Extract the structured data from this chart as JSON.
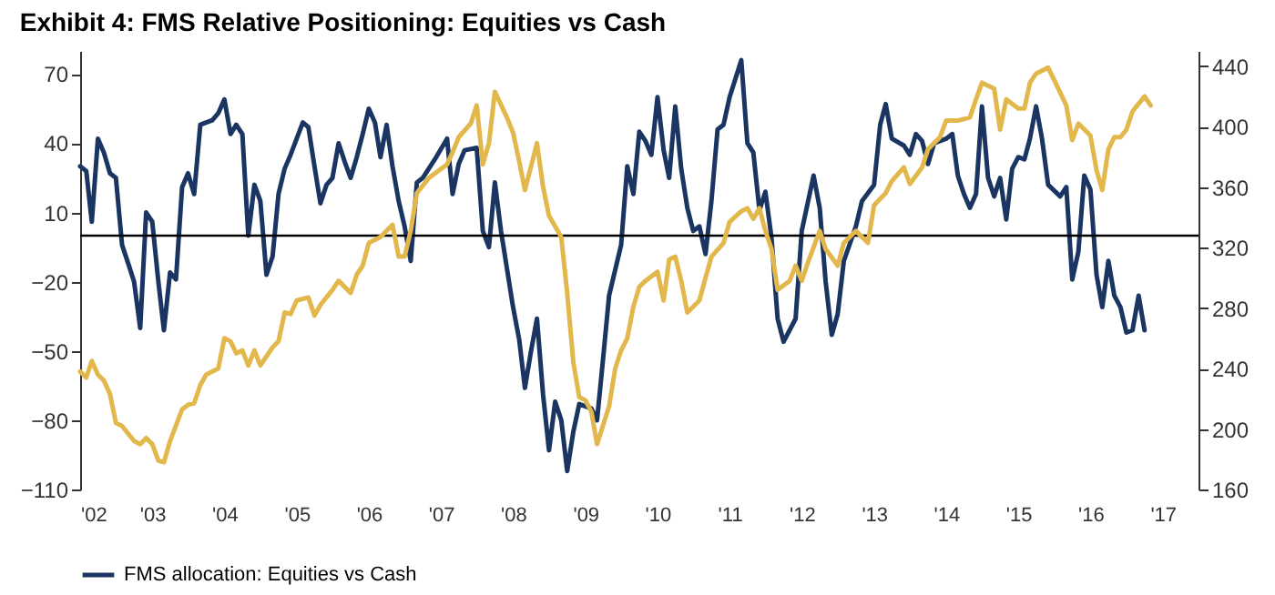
{
  "chart_data": {
    "type": "line",
    "title": "Exhibit 4: FMS Relative Positioning: Equities vs Cash",
    "legend": "bottom",
    "xlim": [
      "2002-01",
      "2017-07"
    ],
    "xticks": [
      {
        "value": "2002-01",
        "label": "'02"
      },
      {
        "value": "2003-01",
        "label": "'03"
      },
      {
        "value": "2004-01",
        "label": "'04"
      },
      {
        "value": "2005-01",
        "label": "'05"
      },
      {
        "value": "2006-01",
        "label": "'06"
      },
      {
        "value": "2007-01",
        "label": "'07"
      },
      {
        "value": "2008-01",
        "label": "'08"
      },
      {
        "value": "2009-01",
        "label": "'09"
      },
      {
        "value": "2010-01",
        "label": "'10"
      },
      {
        "value": "2011-01",
        "label": "'11"
      },
      {
        "value": "2012-01",
        "label": "'12"
      },
      {
        "value": "2013-01",
        "label": "'13"
      },
      {
        "value": "2014-01",
        "label": "'14"
      },
      {
        "value": "2015-01",
        "label": "'15"
      },
      {
        "value": "2016-01",
        "label": "'16"
      },
      {
        "value": "2017-01",
        "label": "'17"
      }
    ],
    "ylim": [
      -110,
      80
    ],
    "yticks": [
      -110,
      -80,
      -50,
      -20,
      10,
      40,
      70
    ],
    "y2lim": [
      160,
      450
    ],
    "y2ticks": [
      160,
      200,
      240,
      280,
      320,
      360,
      400,
      440
    ],
    "ref_lines": [
      {
        "axis": "y",
        "value": 0,
        "color": "#000000"
      }
    ],
    "series": [
      {
        "name": "FMS allocation: Equities vs Cash",
        "color": "#1b3563",
        "x": [
          "2002-01",
          "2002-02",
          "2002-03",
          "2002-04",
          "2002-05",
          "2002-06",
          "2002-07",
          "2002-08",
          "2002-09",
          "2002-10",
          "2002-11",
          "2002-12",
          "2003-01",
          "2003-02",
          "2003-03",
          "2003-04",
          "2003-05",
          "2003-06",
          "2003-07",
          "2003-08",
          "2003-09",
          "2003-10",
          "2003-11",
          "2003-12",
          "2004-01",
          "2004-02",
          "2004-03",
          "2004-04",
          "2004-05",
          "2004-06",
          "2004-07",
          "2004-08",
          "2004-09",
          "2004-10",
          "2004-11",
          "2004-12",
          "2005-01",
          "2005-02",
          "2005-03",
          "2005-04",
          "2005-05",
          "2005-06",
          "2005-07",
          "2005-08",
          "2005-09",
          "2005-10",
          "2005-11",
          "2005-12",
          "2006-01",
          "2006-02",
          "2006-03",
          "2006-04",
          "2006-05",
          "2006-06",
          "2006-07",
          "2006-08",
          "2006-09",
          "2006-10",
          "2006-12",
          "2007-02",
          "2007-03",
          "2007-04",
          "2007-05",
          "2007-07",
          "2007-08",
          "2007-09",
          "2007-10",
          "2007-11",
          "2008-01",
          "2008-02",
          "2008-03",
          "2008-04",
          "2008-05",
          "2008-06",
          "2008-07",
          "2008-08",
          "2008-09",
          "2008-10",
          "2008-11",
          "2008-12",
          "2009-02",
          "2009-03",
          "2009-04",
          "2009-05",
          "2009-07",
          "2009-08",
          "2009-09",
          "2009-10",
          "2009-11",
          "2009-12",
          "2010-01",
          "2010-02",
          "2010-03",
          "2010-04",
          "2010-05",
          "2010-06",
          "2010-07",
          "2010-08",
          "2010-09",
          "2010-10",
          "2010-11",
          "2010-12",
          "2011-01",
          "2011-03",
          "2011-04",
          "2011-05",
          "2011-06",
          "2011-07",
          "2011-08",
          "2011-09",
          "2011-10",
          "2011-12",
          "2012-01",
          "2012-03",
          "2012-04",
          "2012-05",
          "2012-06",
          "2012-07",
          "2012-08",
          "2012-10",
          "2012-11",
          "2013-01",
          "2013-02",
          "2013-03",
          "2013-04",
          "2013-06",
          "2013-07",
          "2013-08",
          "2013-09",
          "2013-10",
          "2013-11",
          "2014-01",
          "2014-02",
          "2014-03",
          "2014-04",
          "2014-05",
          "2014-06",
          "2014-07",
          "2014-08",
          "2014-09",
          "2014-10",
          "2014-11",
          "2014-12",
          "2015-01",
          "2015-02",
          "2015-03",
          "2015-04",
          "2015-05",
          "2015-06",
          "2015-08",
          "2015-09",
          "2015-10",
          "2015-11",
          "2015-12",
          "2016-01",
          "2016-02",
          "2016-03",
          "2016-04",
          "2016-05",
          "2016-06",
          "2016-07",
          "2016-08",
          "2016-09",
          "2016-10"
        ],
        "values": [
          30,
          28,
          6,
          42,
          36,
          27,
          25,
          -4,
          -12,
          -20,
          -40,
          10,
          6,
          -20,
          -41,
          -16,
          -19,
          21,
          27,
          18,
          48,
          49,
          50,
          53,
          59,
          44,
          48,
          44,
          0,
          22,
          15,
          -17,
          -9,
          18,
          29,
          35,
          42,
          49,
          47,
          30,
          14,
          22,
          25,
          40,
          32,
          25,
          34,
          44,
          55,
          49,
          34,
          48,
          30,
          15,
          4,
          -11,
          23,
          25,
          33,
          42,
          18,
          31,
          37,
          38,
          2,
          -5,
          23,
          2,
          -31,
          -45,
          -66,
          -50,
          -36,
          -69,
          -93,
          -72,
          -80,
          -102,
          -85,
          -73,
          -75,
          -80,
          -53,
          -26,
          -4,
          30,
          18,
          45,
          41,
          35,
          60,
          37,
          25,
          56,
          29,
          12,
          2,
          4,
          -8,
          15,
          46,
          48,
          60,
          76,
          40,
          36,
          11,
          19,
          -1,
          -36,
          -46,
          -36,
          2,
          26,
          12,
          -20,
          -43,
          -34,
          -11,
          4,
          15,
          22,
          48,
          57,
          42,
          39,
          35,
          44,
          41,
          31,
          40,
          42,
          44,
          26,
          18,
          12,
          18,
          56,
          25,
          17,
          25,
          7,
          29,
          34,
          33,
          42,
          56,
          42,
          22,
          17,
          21,
          -19,
          -7,
          26,
          20,
          -17,
          -31,
          -11,
          -26,
          -31,
          -42,
          -41,
          -26,
          -41
        ]
      },
      {
        "color": "#e2b84c",
        "axis": "y2",
        "x": [
          "2002-01",
          "2002-02",
          "2002-03",
          "2002-04",
          "2002-05",
          "2002-06",
          "2002-07",
          "2002-08",
          "2002-10",
          "2002-11",
          "2002-12",
          "2003-01",
          "2003-02",
          "2003-03",
          "2003-04",
          "2003-06",
          "2003-07",
          "2003-08",
          "2003-09",
          "2003-10",
          "2003-12",
          "2004-01",
          "2004-02",
          "2004-03",
          "2004-04",
          "2004-05",
          "2004-06",
          "2004-07",
          "2004-09",
          "2004-10",
          "2004-11",
          "2004-12",
          "2005-01",
          "2005-03",
          "2005-04",
          "2005-05",
          "2005-07",
          "2005-08",
          "2005-10",
          "2005-11",
          "2005-12",
          "2006-01",
          "2006-03",
          "2006-05",
          "2006-06",
          "2006-07",
          "2006-08",
          "2006-09",
          "2006-11",
          "2007-02",
          "2007-03",
          "2007-04",
          "2007-06",
          "2007-07",
          "2007-08",
          "2007-09",
          "2007-10",
          "2007-12",
          "2008-01",
          "2008-02",
          "2008-03",
          "2008-05",
          "2008-06",
          "2008-07",
          "2008-09",
          "2008-10",
          "2008-11",
          "2008-12",
          "2009-01",
          "2009-02",
          "2009-03",
          "2009-05",
          "2009-06",
          "2009-07",
          "2009-08",
          "2009-09",
          "2009-10",
          "2009-11",
          "2010-01",
          "2010-02",
          "2010-03",
          "2010-04",
          "2010-05",
          "2010-06",
          "2010-08",
          "2010-09",
          "2010-10",
          "2010-12",
          "2011-01",
          "2011-03",
          "2011-04",
          "2011-05",
          "2011-06",
          "2011-07",
          "2011-08",
          "2011-09",
          "2011-11",
          "2011-12",
          "2012-01",
          "2012-02",
          "2012-04",
          "2012-05",
          "2012-07",
          "2012-08",
          "2012-10",
          "2012-12",
          "2013-01",
          "2013-03",
          "2013-04",
          "2013-06",
          "2013-07",
          "2013-09",
          "2013-10",
          "2013-12",
          "2014-01",
          "2014-03",
          "2014-05",
          "2014-06",
          "2014-07",
          "2014-09",
          "2014-10",
          "2014-11",
          "2015-01",
          "2015-02",
          "2015-03",
          "2015-04",
          "2015-06",
          "2015-07",
          "2015-09",
          "2015-10",
          "2015-11",
          "2016-01",
          "2016-02",
          "2016-03",
          "2016-04",
          "2016-05",
          "2016-06",
          "2016-07",
          "2016-08",
          "2016-10",
          "2016-11"
        ],
        "values": [
          238,
          234,
          245,
          236,
          232,
          223,
          204,
          202,
          192,
          190,
          194,
          190,
          179,
          178,
          192,
          213,
          216,
          217,
          229,
          236,
          240,
          260,
          258,
          250,
          252,
          242,
          252,
          242,
          254,
          258,
          277,
          276,
          285,
          287,
          275,
          282,
          292,
          298,
          290,
          302,
          308,
          323,
          327,
          335,
          314,
          314,
          331,
          356,
          366,
          375,
          383,
          393,
          402,
          414,
          375,
          389,
          423,
          406,
          396,
          377,
          358,
          389,
          360,
          341,
          327,
          290,
          244,
          221,
          219,
          211,
          190,
          215,
          240,
          252,
          260,
          281,
          294,
          298,
          304,
          285,
          312,
          314,
          298,
          277,
          285,
          300,
          314,
          323,
          337,
          344,
          346,
          339,
          346,
          331,
          319,
          292,
          298,
          308,
          298,
          310,
          331,
          319,
          308,
          323,
          331,
          323,
          348,
          356,
          364,
          373,
          362,
          373,
          385,
          393,
          404,
          404,
          406,
          418,
          429,
          425,
          398,
          418,
          412,
          412,
          429,
          435,
          439,
          431,
          414,
          391,
          402,
          394,
          371,
          358,
          385,
          393,
          393,
          398,
          410,
          420,
          414
        ]
      }
    ]
  }
}
